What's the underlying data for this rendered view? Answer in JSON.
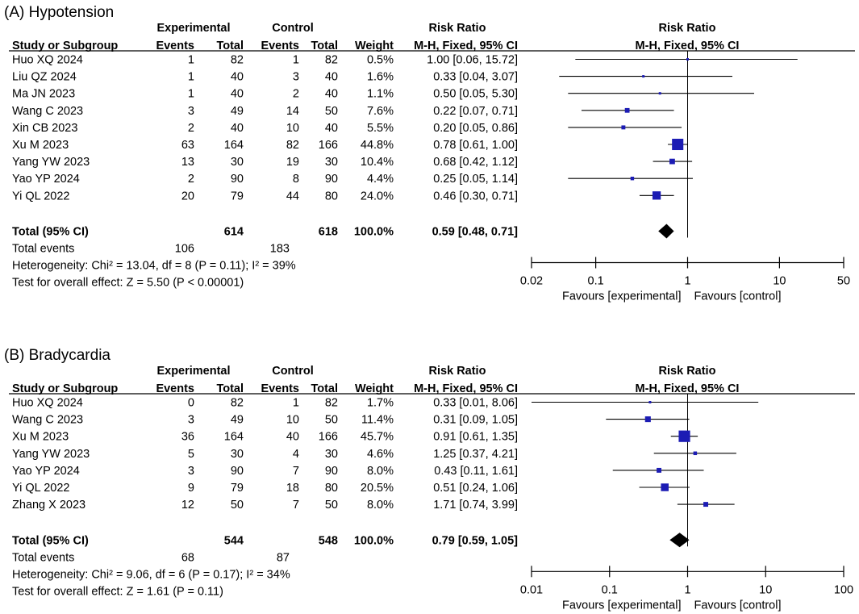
{
  "chart_data": [
    {
      "type": "forest",
      "panel_title": "(A) Hypotension",
      "headers": {
        "group_experimental": "Experimental",
        "group_control": "Control",
        "effect_top": "Risk Ratio",
        "study": "Study or Subgroup",
        "events": "Events",
        "total": "Total",
        "weight": "Weight",
        "effect_method": "M-H, Fixed, 95% CI"
      },
      "studies": [
        {
          "name": "Huo XQ 2024",
          "exp_events": "1",
          "exp_total": "82",
          "ctl_events": "1",
          "ctl_total": "82",
          "weight": "0.5%",
          "ci_text": "1.00 [0.06, 15.72]",
          "rr": 1.0,
          "lo": 0.06,
          "hi": 15.72,
          "w": 0.5
        },
        {
          "name": "Liu QZ 2024",
          "exp_events": "1",
          "exp_total": "40",
          "ctl_events": "3",
          "ctl_total": "40",
          "weight": "1.6%",
          "ci_text": "0.33 [0.04, 3.07]",
          "rr": 0.33,
          "lo": 0.04,
          "hi": 3.07,
          "w": 1.6
        },
        {
          "name": "Ma JN 2023",
          "exp_events": "1",
          "exp_total": "40",
          "ctl_events": "2",
          "ctl_total": "40",
          "weight": "1.1%",
          "ci_text": "0.50 [0.05, 5.30]",
          "rr": 0.5,
          "lo": 0.05,
          "hi": 5.3,
          "w": 1.1
        },
        {
          "name": "Wang C 2023",
          "exp_events": "3",
          "exp_total": "49",
          "ctl_events": "14",
          "ctl_total": "50",
          "weight": "7.6%",
          "ci_text": "0.22 [0.07, 0.71]",
          "rr": 0.22,
          "lo": 0.07,
          "hi": 0.71,
          "w": 7.6
        },
        {
          "name": "Xin CB 2023",
          "exp_events": "2",
          "exp_total": "40",
          "ctl_events": "10",
          "ctl_total": "40",
          "weight": "5.5%",
          "ci_text": "0.20 [0.05, 0.86]",
          "rr": 0.2,
          "lo": 0.05,
          "hi": 0.86,
          "w": 5.5
        },
        {
          "name": "Xu M 2023",
          "exp_events": "63",
          "exp_total": "164",
          "ctl_events": "82",
          "ctl_total": "166",
          "weight": "44.8%",
          "ci_text": "0.78 [0.61, 1.00]",
          "rr": 0.78,
          "lo": 0.61,
          "hi": 1.0,
          "w": 44.8
        },
        {
          "name": "Yang YW 2023",
          "exp_events": "13",
          "exp_total": "30",
          "ctl_events": "19",
          "ctl_total": "30",
          "weight": "10.4%",
          "ci_text": "0.68 [0.42, 1.12]",
          "rr": 0.68,
          "lo": 0.42,
          "hi": 1.12,
          "w": 10.4
        },
        {
          "name": "Yao YP 2024",
          "exp_events": "2",
          "exp_total": "90",
          "ctl_events": "8",
          "ctl_total": "90",
          "weight": "4.4%",
          "ci_text": "0.25 [0.05, 1.14]",
          "rr": 0.25,
          "lo": 0.05,
          "hi": 1.14,
          "w": 4.4
        },
        {
          "name": "Yi QL 2022",
          "exp_events": "20",
          "exp_total": "79",
          "ctl_events": "44",
          "ctl_total": "80",
          "weight": "24.0%",
          "ci_text": "0.46 [0.30, 0.71]",
          "rr": 0.46,
          "lo": 0.3,
          "hi": 0.71,
          "w": 24.0
        }
      ],
      "total": {
        "label": "Total (95% CI)",
        "exp_total": "614",
        "ctl_total": "618",
        "weight": "100.0%",
        "ci_text": "0.59 [0.48, 0.71]",
        "rr": 0.59,
        "lo": 0.48,
        "hi": 0.71
      },
      "total_events": {
        "label": "Total events",
        "exp": "106",
        "ctl": "183"
      },
      "heterogeneity": "Heterogeneity: Chi² = 13.04, df = 8 (P = 0.11); I² = 39%",
      "overall_effect": "Test for overall effect: Z = 5.50 (P < 0.00001)",
      "axis": {
        "scale": "log",
        "ticks": [
          0.02,
          0.1,
          1,
          10,
          50
        ],
        "tick_labels": [
          "0.02",
          "0.1",
          "1",
          "10",
          "50"
        ],
        "left_label": "Favours [experimental]",
        "right_label": "Favours [control]"
      }
    },
    {
      "type": "forest",
      "panel_title": "(B) Bradycardia",
      "headers": {
        "group_experimental": "Experimental",
        "group_control": "Control",
        "effect_top": "Risk Ratio",
        "study": "Study or Subgroup",
        "events": "Events",
        "total": "Total",
        "weight": "Weight",
        "effect_method": "M-H, Fixed, 95% CI"
      },
      "studies": [
        {
          "name": "Huo XQ 2024",
          "exp_events": "0",
          "exp_total": "82",
          "ctl_events": "1",
          "ctl_total": "82",
          "weight": "1.7%",
          "ci_text": "0.33 [0.01, 8.06]",
          "rr": 0.33,
          "lo": 0.01,
          "hi": 8.06,
          "w": 1.7
        },
        {
          "name": "Wang C 2023",
          "exp_events": "3",
          "exp_total": "49",
          "ctl_events": "10",
          "ctl_total": "50",
          "weight": "11.4%",
          "ci_text": "0.31 [0.09, 1.05]",
          "rr": 0.31,
          "lo": 0.09,
          "hi": 1.05,
          "w": 11.4
        },
        {
          "name": "Xu M 2023",
          "exp_events": "36",
          "exp_total": "164",
          "ctl_events": "40",
          "ctl_total": "166",
          "weight": "45.7%",
          "ci_text": "0.91 [0.61, 1.35]",
          "rr": 0.91,
          "lo": 0.61,
          "hi": 1.35,
          "w": 45.7
        },
        {
          "name": "Yang YW 2023",
          "exp_events": "5",
          "exp_total": "30",
          "ctl_events": "4",
          "ctl_total": "30",
          "weight": "4.6%",
          "ci_text": "1.25 [0.37, 4.21]",
          "rr": 1.25,
          "lo": 0.37,
          "hi": 4.21,
          "w": 4.6
        },
        {
          "name": "Yao YP 2024",
          "exp_events": "3",
          "exp_total": "90",
          "ctl_events": "7",
          "ctl_total": "90",
          "weight": "8.0%",
          "ci_text": "0.43 [0.11, 1.61]",
          "rr": 0.43,
          "lo": 0.11,
          "hi": 1.61,
          "w": 8.0
        },
        {
          "name": "Yi QL 2022",
          "exp_events": "9",
          "exp_total": "79",
          "ctl_events": "18",
          "ctl_total": "80",
          "weight": "20.5%",
          "ci_text": "0.51 [0.24, 1.06]",
          "rr": 0.51,
          "lo": 0.24,
          "hi": 1.06,
          "w": 20.5
        },
        {
          "name": "Zhang X 2023",
          "exp_events": "12",
          "exp_total": "50",
          "ctl_events": "7",
          "ctl_total": "50",
          "weight": "8.0%",
          "ci_text": "1.71 [0.74, 3.99]",
          "rr": 1.71,
          "lo": 0.74,
          "hi": 3.99,
          "w": 8.0
        }
      ],
      "total": {
        "label": "Total (95% CI)",
        "exp_total": "544",
        "ctl_total": "548",
        "weight": "100.0%",
        "ci_text": "0.79 [0.59, 1.05]",
        "rr": 0.79,
        "lo": 0.59,
        "hi": 1.05
      },
      "total_events": {
        "label": "Total events",
        "exp": "68",
        "ctl": "87"
      },
      "heterogeneity": "Heterogeneity: Chi² = 9.06, df = 6 (P = 0.17); I² = 34%",
      "overall_effect": "Test for overall effect: Z = 1.61 (P = 0.11)",
      "axis": {
        "scale": "log",
        "ticks": [
          0.01,
          0.1,
          1,
          10,
          100
        ],
        "tick_labels": [
          "0.01",
          "0.1",
          "1",
          "10",
          "100"
        ],
        "left_label": "Favours [experimental]",
        "right_label": "Favours [control]"
      }
    }
  ],
  "colors": {
    "marker": "#1c1cb4",
    "text": "#000000",
    "line": "#000000"
  }
}
